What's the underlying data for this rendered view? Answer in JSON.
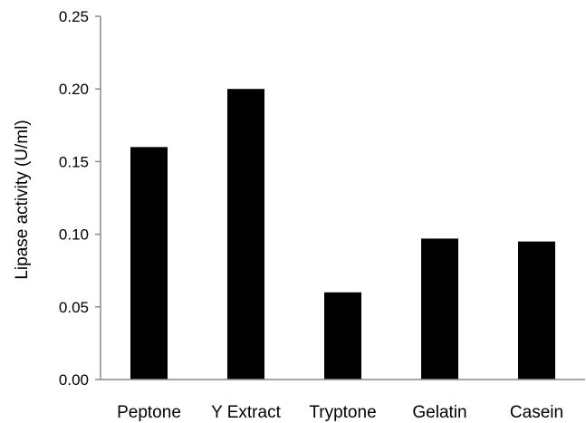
{
  "chart_data": {
    "type": "bar",
    "title": "",
    "xlabel": "",
    "ylabel": "Lipase activity (U/ml)",
    "categories": [
      "Peptone",
      "Y Extract",
      "Tryptone",
      "Gelatin",
      "Casein"
    ],
    "values": [
      0.16,
      0.2,
      0.06,
      0.097,
      0.095
    ],
    "ylim": [
      0,
      0.25
    ],
    "yticks": [
      "0.00",
      "0.05",
      "0.10",
      "0.15",
      "0.20",
      "0.25"
    ],
    "grid": false,
    "legend": "none",
    "bar_color": "#000000"
  }
}
